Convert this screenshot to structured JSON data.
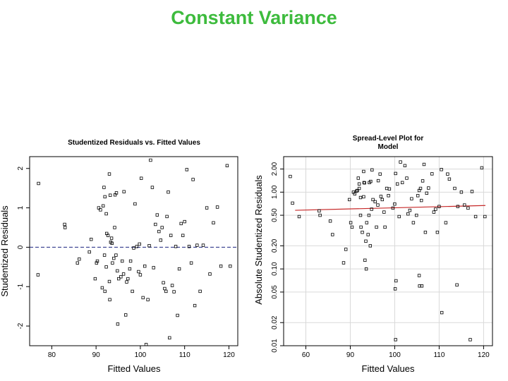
{
  "slide": {
    "title": "Constant Variance"
  },
  "chart_data": [
    {
      "type": "scatter",
      "title": "Studentized Residuals vs. Fitted Values",
      "xlabel": "Fitted Values",
      "ylabel": "Studentized Residuals",
      "xlim": [
        75,
        122
      ],
      "ylim": [
        -2.5,
        2.3
      ],
      "xticks": [
        "80",
        "90",
        "100",
        "110",
        "120"
      ],
      "yticks": [
        "-2",
        "-1",
        "0",
        "1",
        "2"
      ],
      "reference_line": {
        "y": 0,
        "style": "dashed",
        "color": "#1a237e"
      },
      "grid": false,
      "points": [
        [
          77.0,
          1.62
        ],
        [
          76.9,
          -0.7
        ],
        [
          82.9,
          0.58
        ],
        [
          83.0,
          0.5
        ],
        [
          85.8,
          -0.4
        ],
        [
          86.2,
          -0.3
        ],
        [
          88.5,
          -0.12
        ],
        [
          88.9,
          0.2
        ],
        [
          89.8,
          -0.8
        ],
        [
          90.1,
          -0.4
        ],
        [
          90.3,
          -0.35
        ],
        [
          90.6,
          1.0
        ],
        [
          91.0,
          0.95
        ],
        [
          91.4,
          -1.03
        ],
        [
          91.8,
          1.52
        ],
        [
          91.6,
          1.05
        ],
        [
          92.0,
          1.28
        ],
        [
          92.3,
          0.85
        ],
        [
          92.0,
          -1.12
        ],
        [
          91.9,
          -0.2
        ],
        [
          92.3,
          -0.5
        ],
        [
          92.4,
          0.35
        ],
        [
          92.7,
          0.3
        ],
        [
          93.0,
          -0.87
        ],
        [
          93.1,
          -1.33
        ],
        [
          93.0,
          1.86
        ],
        [
          93.2,
          1.32
        ],
        [
          93.5,
          0.23
        ],
        [
          93.6,
          0.1
        ],
        [
          93.3,
          0.13
        ],
        [
          93.7,
          -0.4
        ],
        [
          94.0,
          -0.28
        ],
        [
          94.3,
          1.33
        ],
        [
          94.6,
          1.38
        ],
        [
          94.2,
          0.5
        ],
        [
          94.5,
          -0.2
        ],
        [
          94.8,
          -0.6
        ],
        [
          95.1,
          -0.8
        ],
        [
          94.9,
          -1.95
        ],
        [
          95.6,
          -0.75
        ],
        [
          95.9,
          -0.35
        ],
        [
          96.2,
          -0.68
        ],
        [
          96.3,
          1.41
        ],
        [
          96.7,
          -1.72
        ],
        [
          96.9,
          -0.88
        ],
        [
          97.2,
          -0.8
        ],
        [
          97.6,
          -0.55
        ],
        [
          97.8,
          -0.35
        ],
        [
          98.2,
          -1.12
        ],
        [
          98.5,
          -0.02
        ],
        [
          98.8,
          1.1
        ],
        [
          99.2,
          0.02
        ],
        [
          99.6,
          -0.62
        ],
        [
          99.8,
          0.08
        ],
        [
          100.0,
          -0.7
        ],
        [
          100.2,
          1.75
        ],
        [
          100.6,
          -1.28
        ],
        [
          101.0,
          -0.48
        ],
        [
          101.3,
          -2.47
        ],
        [
          101.7,
          -1.33
        ],
        [
          102.0,
          0.04
        ],
        [
          102.3,
          2.21
        ],
        [
          102.7,
          1.52
        ],
        [
          103.0,
          -0.52
        ],
        [
          103.4,
          0.58
        ],
        [
          103.8,
          0.82
        ],
        [
          104.2,
          0.4
        ],
        [
          104.6,
          0.18
        ],
        [
          104.9,
          0.5
        ],
        [
          105.2,
          -0.9
        ],
        [
          105.5,
          -1.05
        ],
        [
          105.8,
          -1.12
        ],
        [
          106.0,
          0.78
        ],
        [
          106.3,
          1.4
        ],
        [
          106.6,
          -2.3
        ],
        [
          106.9,
          0.3
        ],
        [
          107.2,
          -0.97
        ],
        [
          107.6,
          -1.13
        ],
        [
          108.0,
          0.02
        ],
        [
          108.4,
          -1.73
        ],
        [
          108.8,
          -0.55
        ],
        [
          109.2,
          0.6
        ],
        [
          109.6,
          0.3
        ],
        [
          110.0,
          0.65
        ],
        [
          110.5,
          1.97
        ],
        [
          111.0,
          0.02
        ],
        [
          111.5,
          -0.4
        ],
        [
          111.9,
          1.72
        ],
        [
          112.3,
          -1.48
        ],
        [
          112.8,
          0.05
        ],
        [
          113.5,
          -1.12
        ],
        [
          114.2,
          0.05
        ],
        [
          115.0,
          1.0
        ],
        [
          115.7,
          -0.68
        ],
        [
          116.5,
          0.62
        ],
        [
          117.4,
          1.02
        ],
        [
          118.2,
          -0.48
        ],
        [
          119.6,
          2.07
        ],
        [
          120.3,
          -0.48
        ]
      ]
    },
    {
      "type": "scatter",
      "title": "Spread-Level Plot for Model",
      "title_lines": [
        "Spread-Level Plot for",
        "Model"
      ],
      "xlabel": "Fitted Values",
      "ylabel": "Absolute Studentized Residuals",
      "xlim": [
        75,
        122
      ],
      "ylim": [
        0.01,
        2.9
      ],
      "log_y": true,
      "xticks": [
        "60",
        "90",
        "100",
        "110",
        "120"
      ],
      "yticks": [
        "0.01",
        "0.02",
        "0.05",
        "0.10",
        "0.20",
        "0.50",
        "1.00",
        "2.00"
      ],
      "grid": true,
      "fit_line": {
        "x": [
          76,
          122
        ],
        "y": [
          0.58,
          0.67
        ],
        "color": "#c62828"
      },
      "points": [
        [
          76.5,
          1.6
        ],
        [
          77.0,
          0.72
        ],
        [
          78.5,
          0.48
        ],
        [
          83.0,
          0.57
        ],
        [
          83.2,
          0.5
        ],
        [
          85.5,
          0.42
        ],
        [
          86.0,
          0.28
        ],
        [
          88.5,
          0.12
        ],
        [
          89.0,
          0.18
        ],
        [
          89.8,
          0.8
        ],
        [
          90.1,
          0.4
        ],
        [
          90.4,
          0.35
        ],
        [
          90.7,
          1.0
        ],
        [
          91.0,
          0.95
        ],
        [
          91.4,
          1.03
        ],
        [
          91.8,
          1.52
        ],
        [
          91.6,
          1.05
        ],
        [
          92.0,
          1.28
        ],
        [
          92.3,
          0.85
        ],
        [
          92.0,
          1.12
        ],
        [
          92.3,
          0.5
        ],
        [
          92.4,
          0.35
        ],
        [
          92.7,
          0.3
        ],
        [
          93.0,
          0.87
        ],
        [
          93.1,
          1.33
        ],
        [
          93.0,
          1.86
        ],
        [
          93.2,
          1.32
        ],
        [
          93.5,
          0.23
        ],
        [
          93.6,
          0.1
        ],
        [
          93.3,
          0.13
        ],
        [
          93.7,
          0.4
        ],
        [
          94.0,
          0.28
        ],
        [
          94.3,
          1.33
        ],
        [
          94.6,
          1.38
        ],
        [
          94.2,
          0.5
        ],
        [
          94.5,
          0.2
        ],
        [
          94.8,
          0.6
        ],
        [
          95.1,
          0.8
        ],
        [
          94.9,
          1.95
        ],
        [
          95.6,
          0.75
        ],
        [
          95.9,
          0.35
        ],
        [
          96.2,
          0.68
        ],
        [
          96.3,
          1.41
        ],
        [
          96.7,
          1.72
        ],
        [
          96.9,
          0.88
        ],
        [
          97.2,
          0.8
        ],
        [
          97.6,
          0.55
        ],
        [
          97.8,
          0.35
        ],
        [
          98.2,
          1.12
        ],
        [
          98.6,
          0.9
        ],
        [
          98.8,
          1.1
        ],
        [
          99.6,
          0.62
        ],
        [
          100.0,
          0.7
        ],
        [
          100.2,
          1.75
        ],
        [
          100.6,
          1.28
        ],
        [
          101.0,
          0.48
        ],
        [
          100.3,
          0.07
        ],
        [
          100.1,
          0.055
        ],
        [
          100.2,
          0.012
        ],
        [
          101.3,
          2.47
        ],
        [
          101.7,
          1.33
        ],
        [
          102.3,
          2.21
        ],
        [
          102.7,
          1.52
        ],
        [
          103.0,
          0.52
        ],
        [
          103.4,
          0.58
        ],
        [
          103.8,
          0.82
        ],
        [
          104.2,
          0.4
        ],
        [
          104.9,
          0.5
        ],
        [
          105.2,
          0.9
        ],
        [
          105.5,
          1.05
        ],
        [
          105.8,
          1.12
        ],
        [
          106.0,
          0.78
        ],
        [
          106.3,
          1.4
        ],
        [
          106.6,
          2.3
        ],
        [
          106.9,
          0.3
        ],
        [
          107.2,
          0.97
        ],
        [
          107.6,
          1.13
        ],
        [
          108.4,
          1.73
        ],
        [
          108.8,
          0.55
        ],
        [
          109.2,
          0.6
        ],
        [
          109.6,
          0.3
        ],
        [
          110.0,
          0.65
        ],
        [
          110.5,
          1.97
        ],
        [
          111.5,
          0.4
        ],
        [
          111.9,
          1.72
        ],
        [
          112.3,
          1.48
        ],
        [
          105.5,
          0.082
        ],
        [
          105.6,
          0.06
        ],
        [
          106.1,
          0.06
        ],
        [
          110.6,
          0.027
        ],
        [
          113.5,
          1.12
        ],
        [
          114.2,
          0.65
        ],
        [
          114.0,
          0.062
        ],
        [
          115.0,
          1.0
        ],
        [
          115.7,
          0.68
        ],
        [
          116.5,
          0.62
        ],
        [
          117.0,
          0.012
        ],
        [
          117.4,
          1.02
        ],
        [
          118.2,
          0.48
        ],
        [
          119.6,
          2.07
        ],
        [
          120.3,
          0.48
        ]
      ]
    }
  ]
}
